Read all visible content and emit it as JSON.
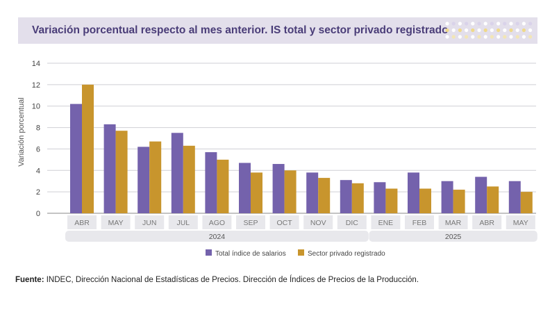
{
  "header": {
    "title": "Variación porcentual respecto al mes anterior. IS total y sector privado registrado"
  },
  "source": {
    "label": "Fuente:",
    "text": "INDEC, Dirección Nacional de Estadísticas de Precios. Dirección de Índices de Precios de la Producción."
  },
  "colors": {
    "series1": "#7462ac",
    "series2": "#c8952d",
    "title_bg": "#e3dfeb",
    "title_text": "#4a3d78",
    "year_band": "#e8e8ec"
  },
  "chart_data": {
    "type": "bar",
    "categories": [
      "ABR",
      "MAY",
      "JUN",
      "JUL",
      "AGO",
      "SEP",
      "OCT",
      "NOV",
      "DIC",
      "ENE",
      "FEB",
      "MAR",
      "ABR",
      "MAY"
    ],
    "year_groups": [
      {
        "label": "2024",
        "from": 0,
        "to": 8
      },
      {
        "label": "2025",
        "from": 9,
        "to": 13
      }
    ],
    "series": [
      {
        "name": "Total índice de salarios",
        "color": "#7462ac",
        "values": [
          10.2,
          8.3,
          6.2,
          7.5,
          5.7,
          4.7,
          4.6,
          3.8,
          3.1,
          2.9,
          3.8,
          3.0,
          3.4,
          3.0
        ]
      },
      {
        "name": "Sector privado registrado",
        "color": "#c8952d",
        "values": [
          12.0,
          7.7,
          6.7,
          6.3,
          5.0,
          3.8,
          4.0,
          3.3,
          2.8,
          2.3,
          2.3,
          2.2,
          2.5,
          2.0
        ]
      }
    ],
    "ylabel": "Variación porcentual",
    "xlabel": "",
    "ylim": [
      0,
      14
    ],
    "yticks": [
      0,
      2,
      4,
      6,
      8,
      10,
      12,
      14
    ],
    "grid": true,
    "legend_position": "bottom"
  }
}
